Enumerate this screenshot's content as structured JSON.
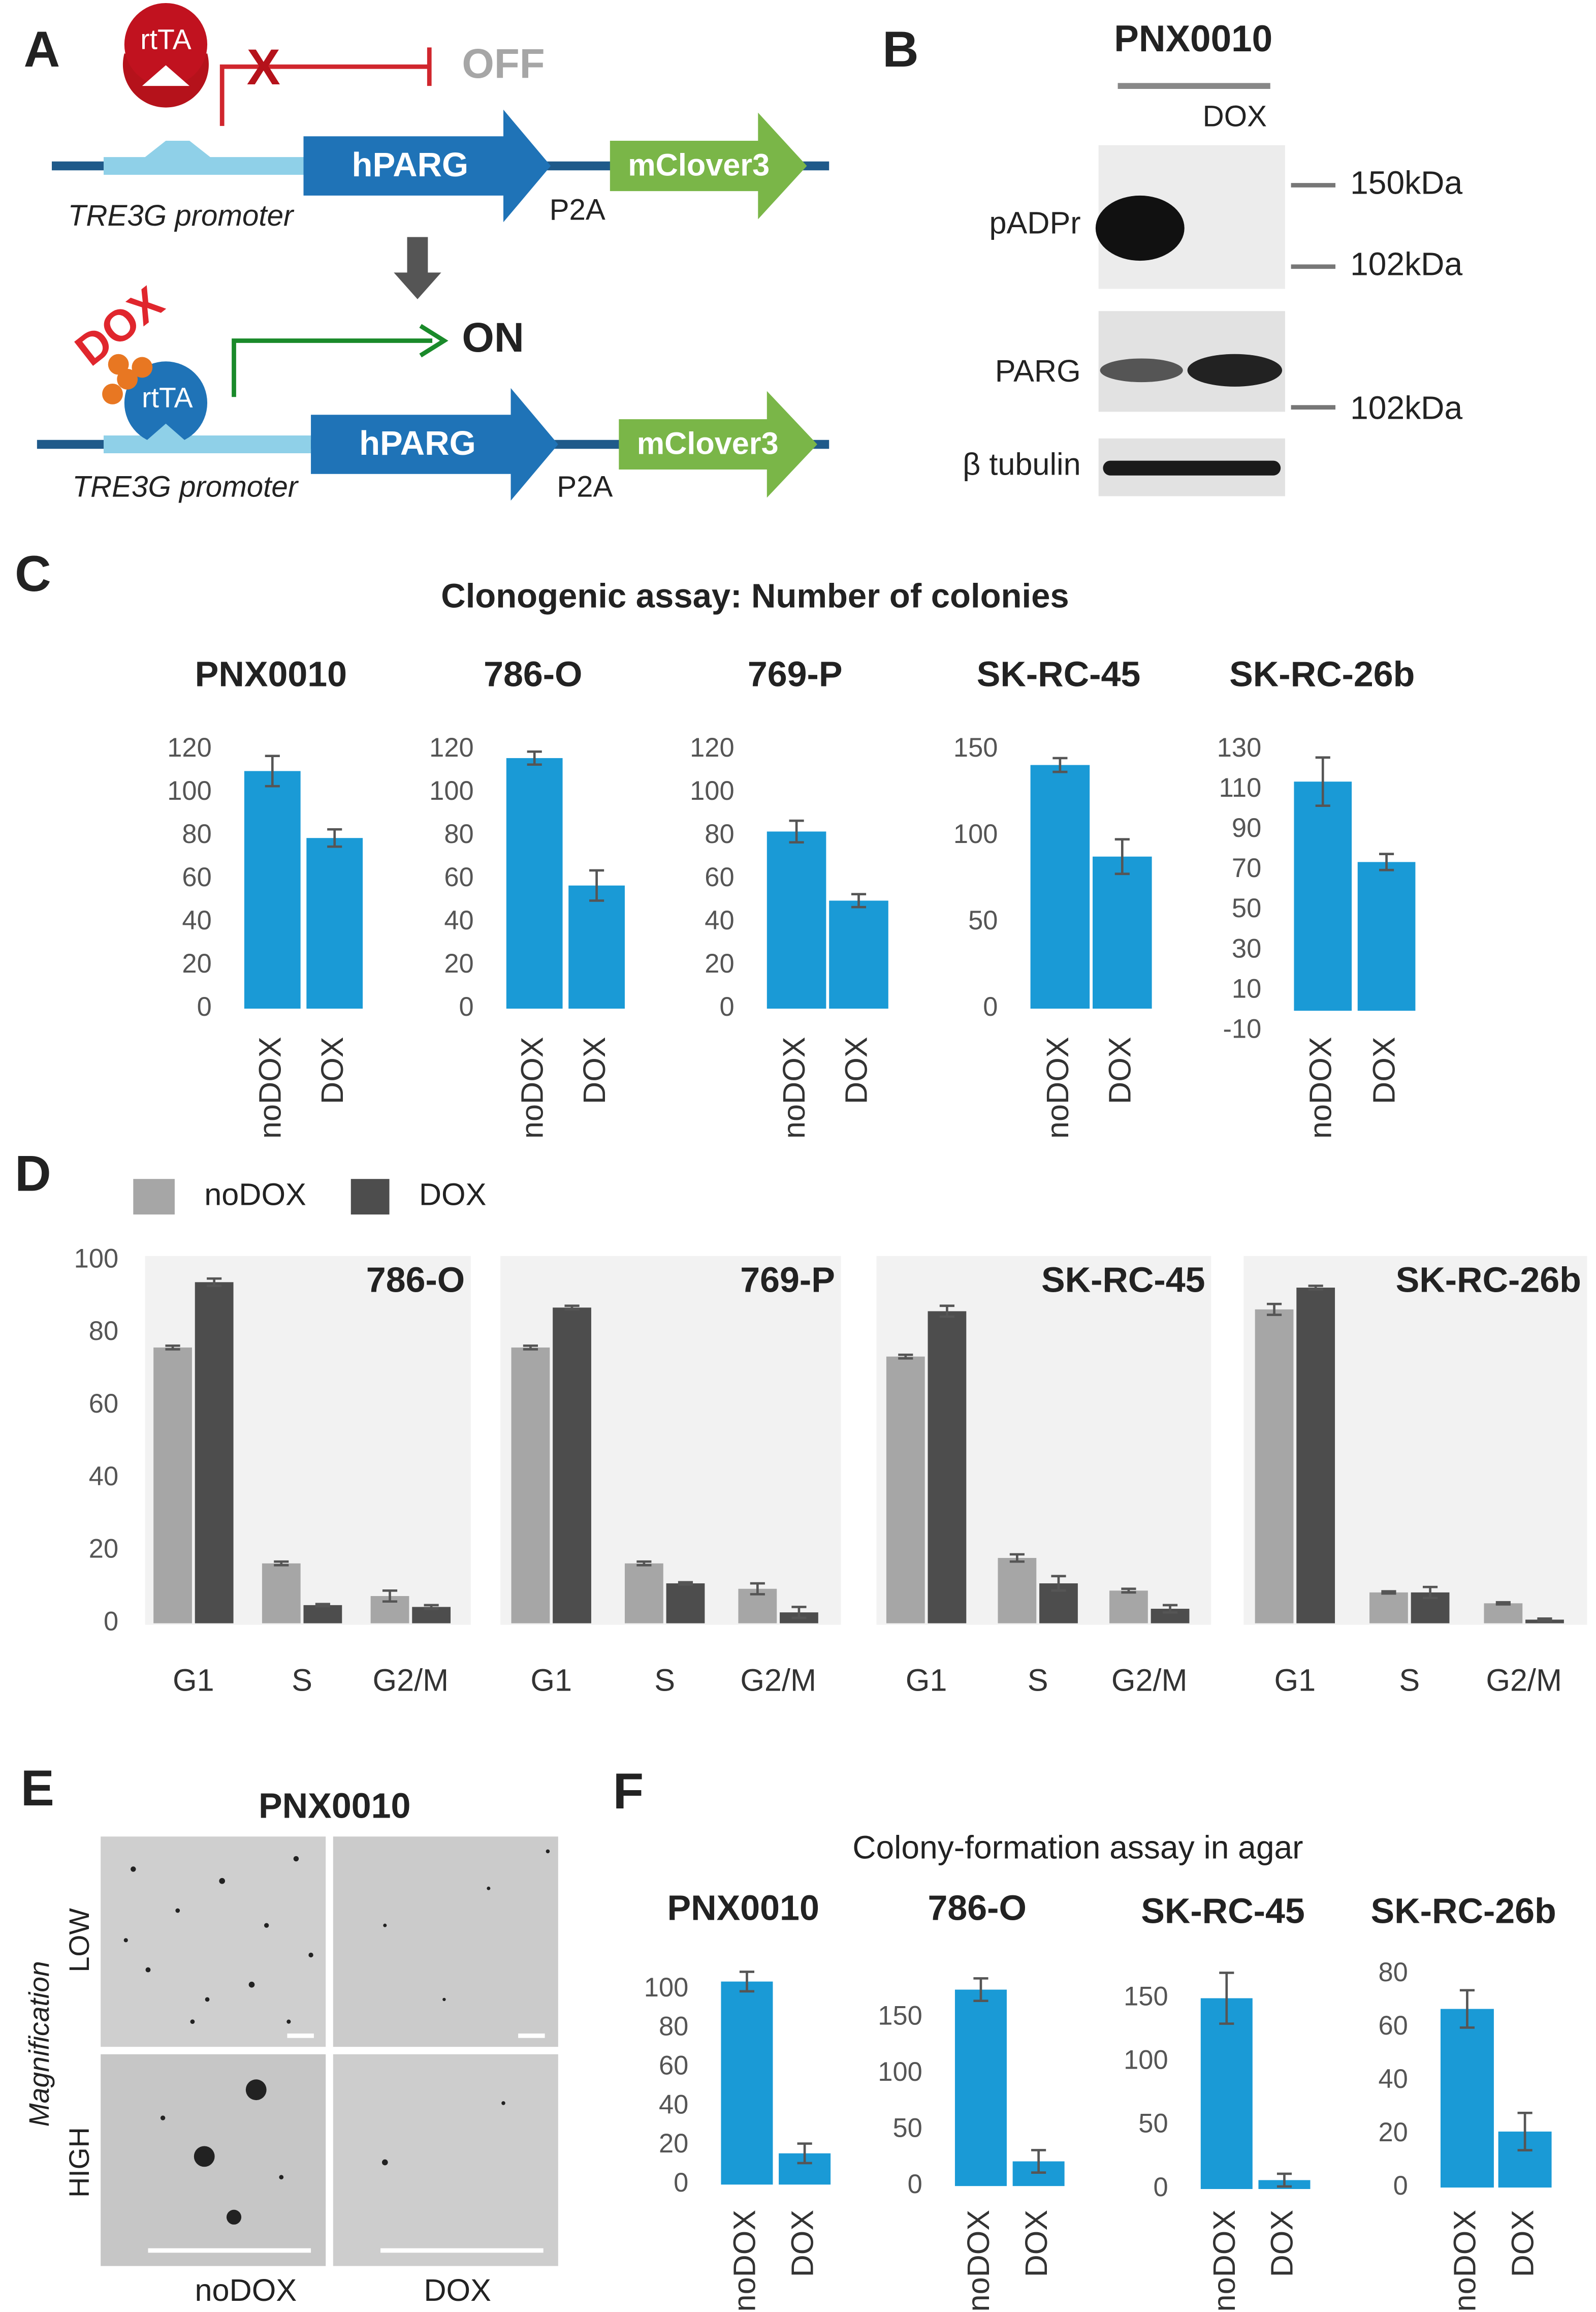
{
  "panel_labels": [
    "A",
    "B",
    "C",
    "D",
    "E",
    "F"
  ],
  "diagram_a": {
    "activator": "rtTA",
    "off_label": "OFF",
    "on_label": "ON",
    "inducer": "DOX",
    "promoter": "TRE3G promoter",
    "gene": "hPARG",
    "linker": "P2A",
    "reporter": "mClover3"
  },
  "blot_b": {
    "title": "PNX0010",
    "treatment": "DOX",
    "rows": [
      "pADPr",
      "PARG",
      "β tubulin"
    ],
    "markers": [
      "150kDa",
      "102kDa",
      "102kDa"
    ]
  },
  "panel_c_title": "Clonogenic assay: Number of colonies",
  "panel_e": {
    "title": "PNX0010",
    "axis_label": "Magnification",
    "rows": [
      "LOW",
      "HIGH"
    ],
    "columns": [
      "noDOX",
      "DOX"
    ]
  },
  "panel_f_title": "Colony-formation assay in agar",
  "chart_data": [
    {
      "type": "bar",
      "title": "PNX0010",
      "categories": [
        "noDOX",
        "DOX"
      ],
      "values": [
        110,
        79
      ],
      "errors": [
        7,
        4
      ],
      "color": "#1a9ad6",
      "ylim": [
        0,
        120
      ],
      "yticks": [
        0,
        20,
        40,
        60,
        80,
        100,
        120
      ]
    },
    {
      "type": "bar",
      "title": "786-O",
      "categories": [
        "noDOX",
        "DOX"
      ],
      "values": [
        116,
        57
      ],
      "errors": [
        3,
        7
      ],
      "color": "#1a9ad6",
      "ylim": [
        0,
        120
      ],
      "yticks": [
        0,
        20,
        40,
        60,
        80,
        100,
        120
      ]
    },
    {
      "type": "bar",
      "title": "769-P",
      "categories": [
        "noDOX",
        "DOX"
      ],
      "values": [
        82,
        50
      ],
      "errors": [
        5,
        3
      ],
      "color": "#1a9ad6",
      "ylim": [
        0,
        120
      ],
      "yticks": [
        0,
        20,
        40,
        60,
        80,
        100,
        120
      ]
    },
    {
      "type": "bar",
      "title": "SK-RC-45",
      "categories": [
        "noDOX",
        "DOX"
      ],
      "values": [
        141,
        88
      ],
      "errors": [
        4,
        10
      ],
      "color": "#1a9ad6",
      "ylim": [
        0,
        150
      ],
      "yticks": [
        0,
        50,
        100,
        150
      ]
    },
    {
      "type": "bar",
      "title": "SK-RC-26b",
      "categories": [
        "noDOX",
        "DOX"
      ],
      "values": [
        114,
        74
      ],
      "errors": [
        12,
        4
      ],
      "color": "#1a9ad6",
      "ylim": [
        -10,
        130
      ],
      "yticks": [
        -10,
        10,
        30,
        50,
        70,
        90,
        110,
        130
      ]
    },
    {
      "type": "grouped_bar",
      "title": "786-O",
      "categories": [
        "G1",
        "S",
        "G2/M"
      ],
      "ylim": [
        0,
        100
      ],
      "yticks": [
        0,
        20,
        40,
        60,
        80,
        100
      ],
      "series": [
        {
          "name": "noDOX",
          "color": "#a6a6a6",
          "values": [
            76,
            16.5,
            7.5
          ],
          "errors": [
            0.5,
            0.5,
            1.5
          ]
        },
        {
          "name": "DOX",
          "color": "#4d4d4d",
          "values": [
            94,
            5,
            4.5
          ],
          "errors": [
            1,
            0.3,
            0.5
          ]
        }
      ]
    },
    {
      "type": "grouped_bar",
      "title": "769-P",
      "categories": [
        "G1",
        "S",
        "G2/M"
      ],
      "ylim": [
        0,
        100
      ],
      "series": [
        {
          "color": "#a6a6a6",
          "values": [
            76,
            16.5,
            9.5
          ],
          "errors": [
            0.5,
            0.5,
            1.5
          ]
        },
        {
          "color": "#4d4d4d",
          "values": [
            87,
            11,
            3
          ],
          "errors": [
            0.5,
            0.3,
            1.5
          ]
        }
      ]
    },
    {
      "type": "grouped_bar",
      "title": "SK-RC-45",
      "categories": [
        "G1",
        "S",
        "G2/M"
      ],
      "ylim": [
        0,
        100
      ],
      "series": [
        {
          "color": "#a6a6a6",
          "values": [
            73.5,
            18,
            9
          ],
          "errors": [
            0.5,
            1,
            0.5
          ]
        },
        {
          "color": "#4d4d4d",
          "values": [
            86,
            11,
            4
          ],
          "errors": [
            1.5,
            2,
            1
          ]
        }
      ]
    },
    {
      "type": "grouped_bar",
      "title": "SK-RC-26b",
      "categories": [
        "G1",
        "S",
        "G2/M"
      ],
      "ylim": [
        0,
        100
      ],
      "series": [
        {
          "color": "#a6a6a6",
          "values": [
            86.5,
            8.5,
            5.5
          ],
          "errors": [
            1.5,
            0.3,
            0.3
          ]
        },
        {
          "color": "#4d4d4d",
          "values": [
            92.5,
            8.5,
            1
          ],
          "errors": [
            0.5,
            1.5,
            0.3
          ]
        }
      ]
    },
    {
      "type": "bar",
      "title": "PNX0010",
      "categories": [
        "noDOX",
        "DOX"
      ],
      "values": [
        104,
        16
      ],
      "errors": [
        5,
        5
      ],
      "color": "#1a9ad6",
      "ylim": [
        0,
        110
      ],
      "yticks": [
        0,
        20,
        40,
        60,
        80,
        100
      ]
    },
    {
      "type": "bar",
      "title": "786-O",
      "categories": [
        "noDOX",
        "DOX"
      ],
      "values": [
        175,
        22
      ],
      "errors": [
        10,
        10
      ],
      "color": "#1a9ad6",
      "ylim": [
        0,
        190
      ],
      "yticks": [
        0,
        50,
        100,
        150
      ]
    },
    {
      "type": "bar",
      "title": "SK-RC-45",
      "categories": [
        "noDOX",
        "DOX"
      ],
      "values": [
        150,
        7
      ],
      "errors": [
        20,
        5
      ],
      "color": "#1a9ad6",
      "ylim": [
        0,
        170
      ],
      "yticks": [
        0,
        50,
        100,
        150
      ]
    },
    {
      "type": "bar",
      "title": "SK-RC-26b",
      "categories": [
        "noDOX",
        "DOX"
      ],
      "values": [
        67,
        21
      ],
      "errors": [
        7,
        7
      ],
      "color": "#1a9ad6",
      "ylim": [
        0,
        80
      ],
      "yticks": [
        0,
        20,
        40,
        60,
        80
      ]
    }
  ]
}
